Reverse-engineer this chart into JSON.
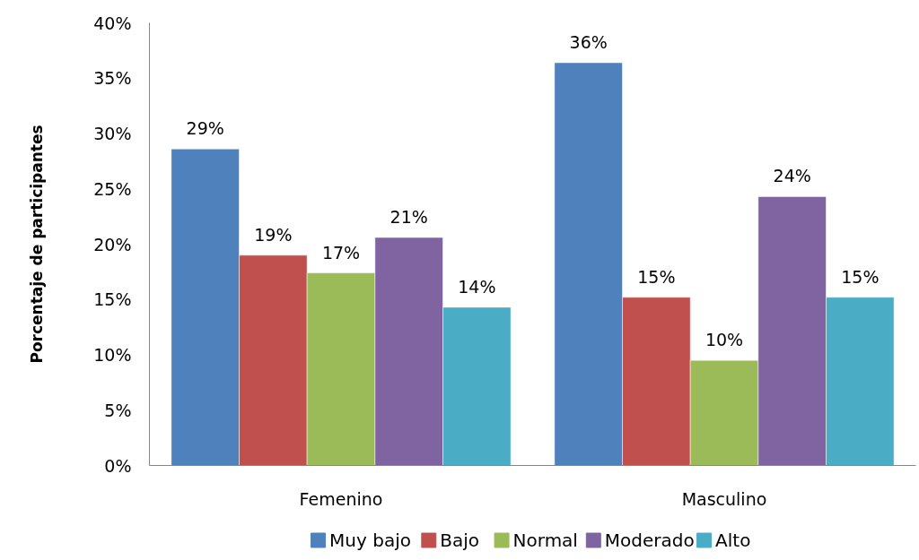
{
  "chart_data": {
    "type": "bar",
    "ylabel": "Porcentaje de participantes",
    "categories": [
      "Femenino",
      "Masculino"
    ],
    "series": [
      {
        "name": "Muy bajo",
        "color": "#4f81bd",
        "values": [
          28.6,
          36.4
        ],
        "value_labels": [
          "29%",
          "36%"
        ]
      },
      {
        "name": "Bajo",
        "color": "#c0504d",
        "values": [
          19.0,
          15.2
        ],
        "value_labels": [
          "19%",
          "15%"
        ]
      },
      {
        "name": "Normal",
        "color": "#9bbb59",
        "values": [
          17.4,
          9.5
        ],
        "value_labels": [
          "17%",
          "10%"
        ]
      },
      {
        "name": "Moderado",
        "color": "#8064a2",
        "values": [
          20.6,
          24.3
        ],
        "value_labels": [
          "21%",
          "24%"
        ]
      },
      {
        "name": "Alto",
        "color": "#4bacc6",
        "values": [
          14.3,
          15.2
        ],
        "value_labels": [
          "14%",
          "15%"
        ]
      }
    ],
    "ylim": [
      0,
      40
    ],
    "yticks": [
      {
        "value": 0,
        "label": "0%"
      },
      {
        "value": 5,
        "label": "5%"
      },
      {
        "value": 10,
        "label": "10%"
      },
      {
        "value": 15,
        "label": "15%"
      },
      {
        "value": 20,
        "label": "20%"
      },
      {
        "value": 25,
        "label": "25%"
      },
      {
        "value": 30,
        "label": "30%"
      },
      {
        "value": 35,
        "label": "35%"
      },
      {
        "value": 40,
        "label": "40%"
      }
    ],
    "legend": "bottom"
  }
}
